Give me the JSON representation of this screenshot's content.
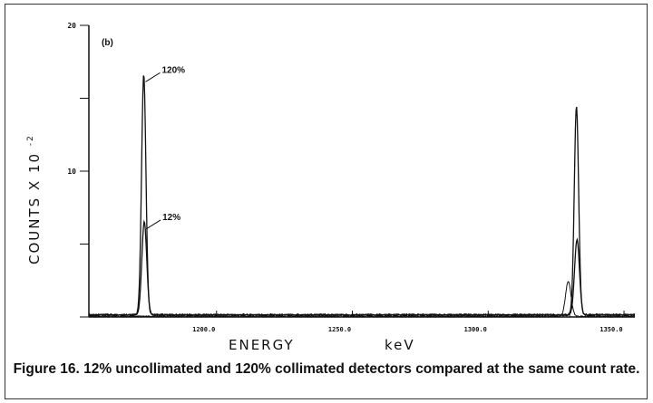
{
  "chart_data": {
    "type": "line",
    "panel_label": "(b)",
    "xlabel": "ENERGY",
    "xunit": "keV",
    "ylabel": "COUNTS X 10",
    "ylabel_exponent": "-2",
    "xlim": [
      1153,
      1354
    ],
    "ylim": [
      0,
      20
    ],
    "x_ticks": [
      {
        "value": 1200,
        "label": "1200.0"
      },
      {
        "value": 1250,
        "label": "1250.0"
      },
      {
        "value": 1300,
        "label": "1300.0"
      },
      {
        "value": 1350,
        "label": "1350.0"
      }
    ],
    "y_ticks": [
      {
        "value": 0,
        "label": ""
      },
      {
        "value": 5,
        "label": ""
      },
      {
        "value": 10,
        "label": "10"
      },
      {
        "value": 15,
        "label": ""
      },
      {
        "value": 20,
        "label": "20"
      }
    ],
    "series": [
      {
        "name": "120%",
        "baseline": 0.12,
        "peaks": [
          {
            "x": 1173.2,
            "height": 16.5,
            "sigma": 0.8
          },
          {
            "x": 1332.5,
            "height": 14.3,
            "sigma": 0.8
          }
        ]
      },
      {
        "name": "12%",
        "baseline": 0.08,
        "peaks": [
          {
            "x": 1173.4,
            "height": 6.4,
            "sigma": 0.9
          },
          {
            "x": 1332.7,
            "height": 5.2,
            "sigma": 0.9
          }
        ]
      },
      {
        "name": "",
        "baseline": 0,
        "peaks": [
          {
            "x": 1329.5,
            "height": 2.4,
            "sigma": 1.0
          }
        ]
      }
    ],
    "annotations": [
      {
        "text": "120%",
        "series": "120%"
      },
      {
        "text": "12%",
        "series": "12%"
      }
    ]
  },
  "caption": "Figure 16.  12% uncollimated and 120% collimated detectors compared at the same count rate."
}
